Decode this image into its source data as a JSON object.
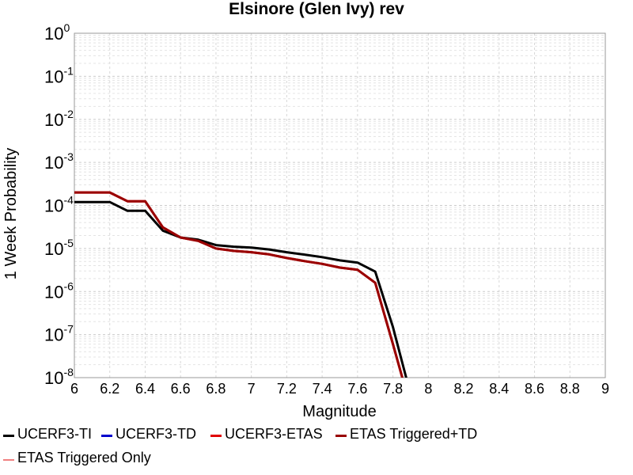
{
  "chart_data": {
    "type": "line",
    "title": "Elsinore (Glen Ivy) rev",
    "xlabel": "Magnitude",
    "ylabel": "1 Week Probability",
    "xlim": [
      6,
      9
    ],
    "ylim": [
      1e-08,
      1
    ],
    "y_scale": "log",
    "grid": true,
    "legend_position": "bottom",
    "x_ticks": [
      "6",
      "6.2",
      "6.4",
      "6.6",
      "6.8",
      "7",
      "7.2",
      "7.4",
      "7.6",
      "7.8",
      "8",
      "8.2",
      "8.4",
      "8.6",
      "8.8",
      "9"
    ],
    "y_ticks": [
      {
        "base": "10",
        "exp": "0"
      },
      {
        "base": "10",
        "exp": "-1"
      },
      {
        "base": "10",
        "exp": "-2"
      },
      {
        "base": "10",
        "exp": "-3"
      },
      {
        "base": "10",
        "exp": "-4"
      },
      {
        "base": "10",
        "exp": "-5"
      },
      {
        "base": "10",
        "exp": "-6"
      },
      {
        "base": "10",
        "exp": "-7"
      },
      {
        "base": "10",
        "exp": "-8"
      }
    ],
    "series": [
      {
        "name": "UCERF3-TI",
        "color": "#000000",
        "x": [
          6.0,
          6.2,
          6.3,
          6.4,
          6.5,
          6.6,
          6.7,
          6.8,
          6.9,
          7.0,
          7.1,
          7.2,
          7.3,
          7.4,
          7.5,
          7.6,
          7.7,
          7.8,
          7.9
        ],
        "y": [
          0.00012,
          0.00012,
          7.5e-05,
          7.5e-05,
          2.6e-05,
          1.8e-05,
          1.6e-05,
          1.2e-05,
          1.1e-05,
          1.05e-05,
          9.5e-06,
          8.2e-06,
          7.2e-06,
          6.3e-06,
          5.3e-06,
          4.7e-06,
          2.9e-06,
          1.5e-07,
          4e-09
        ]
      },
      {
        "name": "UCERF3-TD",
        "color": "#0000cc",
        "x": [],
        "y": []
      },
      {
        "name": "UCERF3-ETAS",
        "color": "#e00000",
        "x": [
          6.0,
          6.2,
          6.3,
          6.4,
          6.5,
          6.6,
          6.7,
          6.8,
          6.9,
          7.0,
          7.1,
          7.2,
          7.3,
          7.4,
          7.5,
          7.6,
          7.7,
          7.8,
          7.88
        ],
        "y": [
          0.0002,
          0.0002,
          0.000125,
          0.000125,
          3.1e-05,
          1.8e-05,
          1.5e-05,
          1e-05,
          8.8e-06,
          8.2e-06,
          7.3e-06,
          6e-06,
          5.1e-06,
          4.4e-06,
          3.6e-06,
          3.2e-06,
          1.6e-06,
          6e-08,
          4e-09
        ]
      },
      {
        "name": "ETAS Triggered+TD",
        "color": "#990000",
        "x": [
          6.0,
          6.2,
          6.3,
          6.4,
          6.5,
          6.6,
          6.7,
          6.8,
          6.9,
          7.0,
          7.1,
          7.2,
          7.3,
          7.4,
          7.5,
          7.6,
          7.7,
          7.8,
          7.88
        ],
        "y": [
          0.0002,
          0.0002,
          0.000125,
          0.000125,
          3.1e-05,
          1.8e-05,
          1.5e-05,
          1e-05,
          8.8e-06,
          8.2e-06,
          7.3e-06,
          6e-06,
          5.1e-06,
          4.4e-06,
          3.6e-06,
          3.2e-06,
          1.6e-06,
          6e-08,
          4e-09
        ]
      },
      {
        "name": "ETAS Triggered Only",
        "color": "#f08080",
        "x": [],
        "y": []
      }
    ]
  }
}
